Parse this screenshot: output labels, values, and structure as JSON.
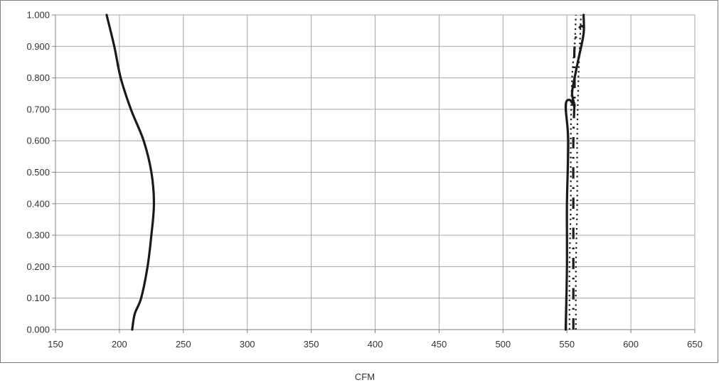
{
  "chart_data": {
    "type": "line",
    "title": "",
    "xlabel": "CFM",
    "ylabel": "",
    "xlim": [
      150,
      650
    ],
    "ylim": [
      0,
      1
    ],
    "x_ticks": [
      "150",
      "200",
      "250",
      "300",
      "350",
      "400",
      "450",
      "500",
      "550",
      "600",
      "650"
    ],
    "y_ticks": [
      "0.000",
      "0.100",
      "0.200",
      "0.300",
      "0.400",
      "0.500",
      "0.600",
      "0.700",
      "0.800",
      "0.900",
      "1.000"
    ],
    "grid": true,
    "legend": "none",
    "colors": {
      "line": "#1a1a1a",
      "grid": "#a6a6a6",
      "frame": "#808080"
    },
    "series": [
      {
        "style": "solid",
        "points": [
          [
            210,
            0.0
          ],
          [
            212,
            0.05
          ],
          [
            217,
            0.1
          ],
          [
            222,
            0.2
          ],
          [
            225,
            0.3
          ],
          [
            227,
            0.4
          ],
          [
            225,
            0.5
          ],
          [
            219,
            0.6
          ],
          [
            209,
            0.7
          ],
          [
            201,
            0.8
          ],
          [
            196,
            0.9
          ],
          [
            190,
            1.0
          ]
        ]
      },
      {
        "style": "solid",
        "points": [
          [
            549,
            0.0
          ],
          [
            550,
            0.2
          ],
          [
            550,
            0.4
          ],
          [
            551,
            0.6
          ],
          [
            549,
            0.71
          ],
          [
            552,
            0.73
          ],
          [
            556,
            0.71
          ],
          [
            554,
            0.75
          ],
          [
            556,
            0.8
          ],
          [
            559,
            0.86
          ],
          [
            563,
            0.94
          ],
          [
            563,
            1.0
          ]
        ]
      },
      {
        "style": "dash-dot",
        "points": [
          [
            555,
            0.0
          ],
          [
            555,
            0.2
          ],
          [
            555,
            0.4
          ],
          [
            555,
            0.6
          ],
          [
            556,
            0.75
          ],
          [
            556,
            0.9
          ],
          [
            560,
            0.96
          ],
          [
            564,
            0.96
          ]
        ]
      },
      {
        "style": "dotted",
        "points": [
          [
            552,
            0.0
          ],
          [
            552,
            0.2
          ],
          [
            553,
            0.4
          ],
          [
            553,
            0.6
          ],
          [
            554,
            0.8
          ],
          [
            556,
            0.9
          ],
          [
            557,
            1.0
          ]
        ]
      },
      {
        "style": "dotted",
        "points": [
          [
            557,
            0.0
          ],
          [
            557,
            0.2
          ],
          [
            558,
            0.4
          ],
          [
            558,
            0.6
          ],
          [
            559,
            0.8
          ],
          [
            560,
            0.9
          ],
          [
            561,
            1.0
          ]
        ]
      }
    ]
  }
}
